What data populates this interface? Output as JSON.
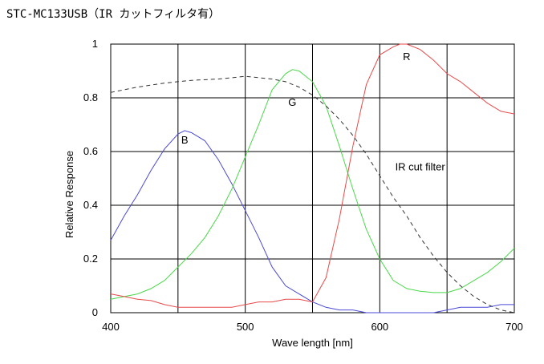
{
  "chart_data": {
    "type": "line",
    "title": "STC-MC133USB（IR カットフィルタ有）",
    "xlabel": "Wave length [nm]",
    "ylabel": "Relative Response",
    "xlim": [
      400,
      700
    ],
    "ylim": [
      0,
      1
    ],
    "xticks": [
      400,
      500,
      600,
      700
    ],
    "yticks": [
      0,
      0.2,
      0.4,
      0.6,
      0.8,
      1
    ],
    "xtick_labels": [
      "400",
      "500",
      "600",
      "700"
    ],
    "ytick_labels": [
      "0",
      "0.2",
      "0.4",
      "0.6",
      "0.8",
      "1"
    ],
    "x_grid_values": [
      400,
      450,
      500,
      550,
      600,
      650,
      700
    ],
    "y_grid_values": [
      0,
      0.2,
      0.4,
      0.6,
      0.8,
      1
    ],
    "grid": true,
    "series": [
      {
        "name": "B",
        "color": "#4a4ad8",
        "dash": "solid",
        "label_at": [
          455,
          0.63
        ],
        "points": [
          [
            400,
            0.27
          ],
          [
            410,
            0.36
          ],
          [
            420,
            0.44
          ],
          [
            430,
            0.53
          ],
          [
            440,
            0.61
          ],
          [
            450,
            0.665
          ],
          [
            455,
            0.678
          ],
          [
            460,
            0.67
          ],
          [
            470,
            0.64
          ],
          [
            480,
            0.57
          ],
          [
            490,
            0.48
          ],
          [
            500,
            0.38
          ],
          [
            510,
            0.28
          ],
          [
            520,
            0.17
          ],
          [
            530,
            0.1
          ],
          [
            540,
            0.07
          ],
          [
            550,
            0.04
          ],
          [
            560,
            0.02
          ],
          [
            570,
            0.01
          ],
          [
            580,
            0.01
          ],
          [
            590,
            0.0
          ],
          [
            600,
            0.0
          ],
          [
            620,
            0.0
          ],
          [
            640,
            0.0
          ],
          [
            650,
            0.01
          ],
          [
            660,
            0.02
          ],
          [
            680,
            0.02
          ],
          [
            690,
            0.03
          ],
          [
            700,
            0.03
          ]
        ]
      },
      {
        "name": "G",
        "color": "#4ad84a",
        "dash": "solid",
        "label_at": [
          535,
          0.77
        ],
        "points": [
          [
            400,
            0.05
          ],
          [
            410,
            0.06
          ],
          [
            420,
            0.07
          ],
          [
            430,
            0.09
          ],
          [
            440,
            0.12
          ],
          [
            450,
            0.17
          ],
          [
            460,
            0.22
          ],
          [
            470,
            0.28
          ],
          [
            480,
            0.36
          ],
          [
            490,
            0.46
          ],
          [
            500,
            0.58
          ],
          [
            510,
            0.7
          ],
          [
            520,
            0.83
          ],
          [
            530,
            0.89
          ],
          [
            535,
            0.905
          ],
          [
            540,
            0.9
          ],
          [
            550,
            0.86
          ],
          [
            560,
            0.77
          ],
          [
            570,
            0.62
          ],
          [
            580,
            0.46
          ],
          [
            590,
            0.31
          ],
          [
            600,
            0.2
          ],
          [
            610,
            0.12
          ],
          [
            620,
            0.09
          ],
          [
            630,
            0.08
          ],
          [
            640,
            0.075
          ],
          [
            650,
            0.075
          ],
          [
            660,
            0.09
          ],
          [
            670,
            0.12
          ],
          [
            680,
            0.15
          ],
          [
            690,
            0.19
          ],
          [
            700,
            0.24
          ]
        ]
      },
      {
        "name": "R",
        "color": "#e84a4a",
        "dash": "solid",
        "label_at": [
          620,
          0.94
        ],
        "points": [
          [
            400,
            0.07
          ],
          [
            410,
            0.06
          ],
          [
            420,
            0.05
          ],
          [
            430,
            0.045
          ],
          [
            440,
            0.03
          ],
          [
            450,
            0.02
          ],
          [
            460,
            0.02
          ],
          [
            470,
            0.02
          ],
          [
            480,
            0.02
          ],
          [
            490,
            0.02
          ],
          [
            500,
            0.03
          ],
          [
            510,
            0.04
          ],
          [
            520,
            0.04
          ],
          [
            530,
            0.05
          ],
          [
            540,
            0.05
          ],
          [
            550,
            0.04
          ],
          [
            560,
            0.13
          ],
          [
            570,
            0.35
          ],
          [
            580,
            0.62
          ],
          [
            590,
            0.85
          ],
          [
            600,
            0.96
          ],
          [
            610,
            0.99
          ],
          [
            615,
            1.0
          ],
          [
            620,
            1.0
          ],
          [
            630,
            0.98
          ],
          [
            640,
            0.94
          ],
          [
            650,
            0.89
          ],
          [
            660,
            0.86
          ],
          [
            670,
            0.82
          ],
          [
            680,
            0.78
          ],
          [
            690,
            0.75
          ],
          [
            700,
            0.74
          ]
        ]
      },
      {
        "name": "IR cut filter",
        "color": "#333333",
        "dash": "dashed",
        "label_at": [
          630,
          0.53
        ],
        "points": [
          [
            400,
            0.82
          ],
          [
            420,
            0.84
          ],
          [
            440,
            0.855
          ],
          [
            460,
            0.865
          ],
          [
            480,
            0.87
          ],
          [
            500,
            0.88
          ],
          [
            510,
            0.875
          ],
          [
            520,
            0.87
          ],
          [
            530,
            0.86
          ],
          [
            540,
            0.84
          ],
          [
            550,
            0.81
          ],
          [
            560,
            0.77
          ],
          [
            570,
            0.72
          ],
          [
            580,
            0.66
          ],
          [
            590,
            0.59
          ],
          [
            600,
            0.51
          ],
          [
            610,
            0.43
          ],
          [
            620,
            0.36
          ],
          [
            630,
            0.28
          ],
          [
            640,
            0.21
          ],
          [
            650,
            0.15
          ],
          [
            660,
            0.1
          ],
          [
            670,
            0.06
          ],
          [
            680,
            0.03
          ],
          [
            690,
            0.01
          ],
          [
            700,
            0.0
          ]
        ]
      }
    ]
  }
}
